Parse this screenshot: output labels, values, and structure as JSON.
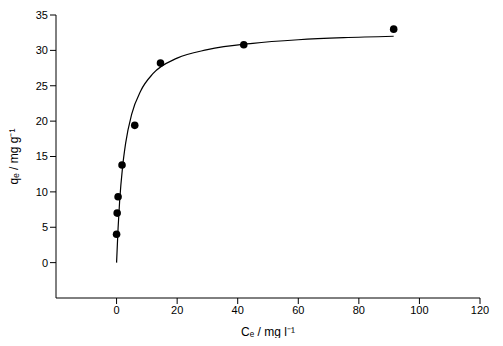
{
  "chart_data": {
    "type": "scatter",
    "x_label": "Cₑ / mg l⁻¹",
    "y_label": "qₑ / mg g⁻¹",
    "xlim": [
      -20,
      120
    ],
    "xticks": [
      0,
      20,
      40,
      60,
      80,
      100,
      120
    ],
    "ylim": [
      -5,
      35
    ],
    "yticks": [
      0,
      5,
      10,
      15,
      20,
      25,
      30,
      35
    ],
    "grid": false,
    "series": [
      {
        "type": "scatter",
        "marker": "circle",
        "color": "#000000",
        "x": [
          0,
          0.2,
          0.5,
          1.8,
          6,
          14.5,
          42,
          91.5
        ],
        "values": [
          4,
          7,
          9.3,
          13.8,
          19.4,
          28.2,
          30.8,
          33
        ]
      },
      {
        "type": "line",
        "line_style": "solid",
        "color": "#000000",
        "x": [
          0,
          0.5,
          1,
          2,
          3,
          5,
          8,
          12,
          20,
          30,
          45,
          60,
          75,
          91.5
        ],
        "values": [
          0,
          4.9,
          8.6,
          13.6,
          16.9,
          21.0,
          24.3,
          26.7,
          28.9,
          30.1,
          31.0,
          31.5,
          31.8,
          32.0
        ]
      }
    ]
  }
}
